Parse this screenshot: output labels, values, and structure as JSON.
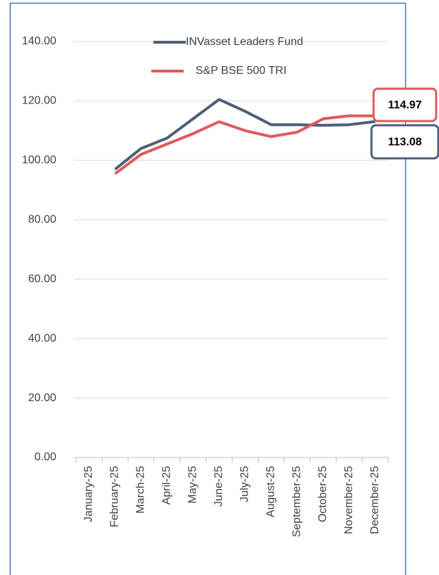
{
  "chart_data": {
    "type": "line",
    "categories": [
      "January-25",
      "February-25",
      "March-25",
      "April-25",
      "May-25",
      "June-25",
      "July-25",
      "August-25",
      "September-25",
      "October-25",
      "November-25",
      "December-25"
    ],
    "series": [
      {
        "name": "INVasset Leaders Fund",
        "color": "#4d5f7a",
        "values": [
          null,
          97,
          104,
          107.5,
          114,
          120.5,
          116.5,
          112,
          112,
          111.8,
          112,
          113.08
        ]
      },
      {
        "name": "S&P BSE 500 TRI",
        "color": "#e05a5a",
        "values": [
          null,
          95.5,
          102,
          105.5,
          109,
          113,
          110,
          108,
          109.5,
          114,
          115,
          114.97
        ]
      }
    ],
    "ylim": [
      0,
      140
    ],
    "yticks": [
      {
        "value": 0,
        "label": "0.00"
      },
      {
        "value": 20,
        "label": "20.00"
      },
      {
        "value": 40,
        "label": "40.00"
      },
      {
        "value": 60,
        "label": "60.00"
      },
      {
        "value": 80,
        "label": "80.00"
      },
      {
        "value": 100,
        "label": "100.00"
      },
      {
        "value": 120,
        "label": "120.00"
      },
      {
        "value": 140,
        "label": "140.00"
      }
    ],
    "grid": true,
    "legend": "top"
  }
}
